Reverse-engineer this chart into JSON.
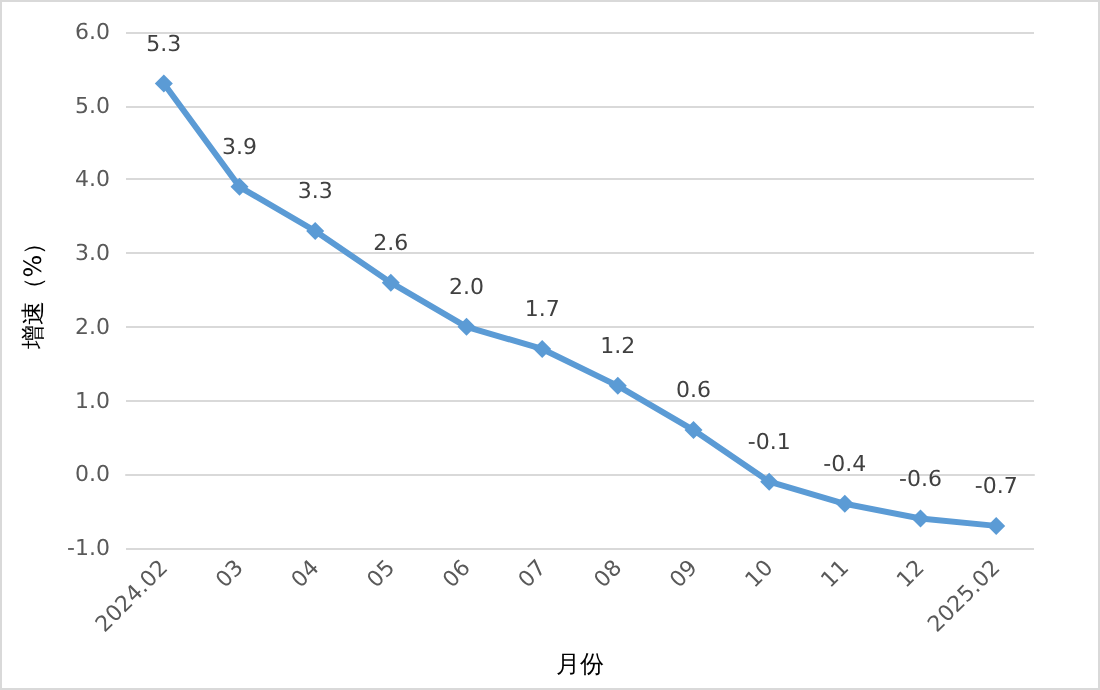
{
  "chart_data": {
    "type": "line",
    "xlabel": "月份",
    "ylabel": "增速（%）",
    "categories": [
      "2024.02",
      "03",
      "04",
      "05",
      "06",
      "07",
      "08",
      "09",
      "10",
      "11",
      "12",
      "2025.02"
    ],
    "series": [
      {
        "color": "#5b9bd5",
        "values": [
          5.3,
          3.9,
          3.3,
          2.6,
          2.0,
          1.7,
          1.2,
          0.6,
          -0.1,
          -0.4,
          -0.6,
          -0.7
        ],
        "value_labels": [
          "5.3",
          "3.9",
          "3.3",
          "2.6",
          "2.0",
          "1.7",
          "1.2",
          "0.6",
          "-0.1",
          "-0.4",
          "-0.6",
          "-0.7"
        ]
      }
    ],
    "ylim": [
      -1,
      6
    ],
    "yticks": [
      {
        "value": -1,
        "label": "-1.0"
      },
      {
        "value": 0,
        "label": "0.0"
      },
      {
        "value": 1,
        "label": "1.0"
      },
      {
        "value": 2,
        "label": "2.0"
      },
      {
        "value": 3,
        "label": "3.0"
      },
      {
        "value": 4,
        "label": "4.0"
      },
      {
        "value": 5,
        "label": "5.0"
      },
      {
        "value": 6,
        "label": "6.0"
      }
    ],
    "grid": "y",
    "marker": "diamond",
    "line_style": "solid"
  }
}
